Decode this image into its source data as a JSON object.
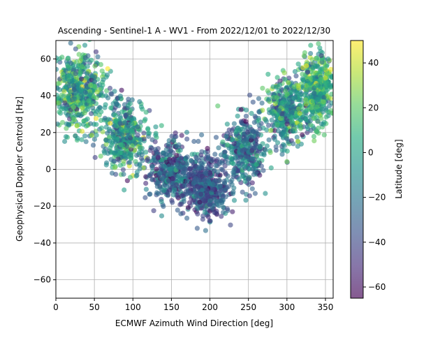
{
  "chart_data": {
    "type": "scatter",
    "title": "Ascending - Sentinel-1 A - WV1 - From 2022/12/01 to 2022/12/30",
    "xlabel": "ECMWF Azimuth Wind Direction [deg]",
    "ylabel": "Geophysical Doppler Centroid [Hz]",
    "xlim": [
      0,
      360
    ],
    "ylim": [
      -70,
      70
    ],
    "xticks": [
      0,
      50,
      100,
      150,
      200,
      250,
      300,
      350
    ],
    "yticks": [
      -60,
      -40,
      -20,
      0,
      20,
      40,
      60
    ],
    "grid": true,
    "marker_alpha": 0.6,
    "colorbar": {
      "label": "Latitude [deg]",
      "range": [
        -65,
        50
      ],
      "ticks": [
        -60,
        -40,
        -20,
        0,
        20,
        40
      ],
      "colormap": "viridis"
    },
    "pattern": {
      "description_points": "representative cloud following a U-shaped (cosine-like) relation",
      "clusters": [
        {
          "x_center": 30,
          "x_spread": 30,
          "y_center": 42,
          "y_spread": 18,
          "lat_mean": 0,
          "lat_spread": 35,
          "count": 520
        },
        {
          "x_center": 90,
          "x_spread": 25,
          "y_center": 18,
          "y_spread": 16,
          "lat_mean": -10,
          "lat_spread": 35,
          "count": 380
        },
        {
          "x_center": 150,
          "x_spread": 25,
          "y_center": 0,
          "y_spread": 15,
          "lat_mean": -30,
          "lat_spread": 30,
          "count": 380
        },
        {
          "x_center": 195,
          "x_spread": 25,
          "y_center": -10,
          "y_spread": 14,
          "lat_mean": -35,
          "lat_spread": 25,
          "count": 450
        },
        {
          "x_center": 245,
          "x_spread": 22,
          "y_center": 10,
          "y_spread": 16,
          "lat_mean": -25,
          "lat_spread": 30,
          "count": 360
        },
        {
          "x_center": 300,
          "x_spread": 25,
          "y_center": 32,
          "y_spread": 16,
          "lat_mean": -10,
          "lat_spread": 35,
          "count": 380
        },
        {
          "x_center": 340,
          "x_spread": 20,
          "y_center": 45,
          "y_spread": 16,
          "lat_mean": 5,
          "lat_spread": 30,
          "count": 420
        }
      ]
    }
  }
}
